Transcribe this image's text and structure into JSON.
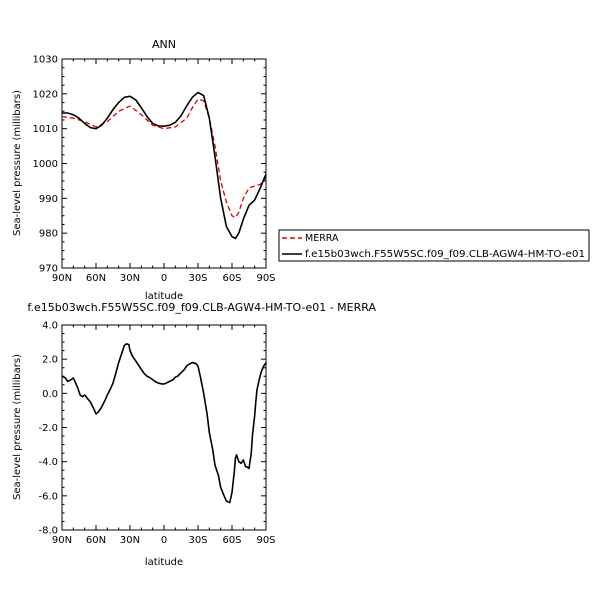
{
  "chart_data": [
    {
      "type": "line",
      "title": "ANN",
      "xlabel": "latitude",
      "ylabel": "Sea-level pressure (millibars)",
      "xlim": [
        90,
        -90
      ],
      "ylim": [
        970,
        1030
      ],
      "x_ticks": [
        "90N",
        "60N",
        "30N",
        "0",
        "30S",
        "60S",
        "90S"
      ],
      "y_ticks": [
        "970",
        "980",
        "990",
        "1000",
        "1010",
        "1020",
        "1030"
      ],
      "legend_position": "right",
      "series": [
        {
          "name": "MERRA",
          "color": "#e00000",
          "dash": true,
          "x": [
            90,
            80,
            70,
            60,
            50,
            40,
            30,
            20,
            10,
            0,
            -10,
            -20,
            -25,
            -30,
            -35,
            -40,
            -45,
            -50,
            -55,
            -60,
            -63,
            -66,
            -70,
            -75,
            -80,
            -85,
            -90
          ],
          "y": [
            1013.5,
            1013,
            1012,
            1010.5,
            1012,
            1015,
            1016.5,
            1014,
            1011,
            1010,
            1010.5,
            1013,
            1016,
            1018.5,
            1018,
            1013,
            1005,
            995,
            989,
            985,
            984.5,
            986,
            990,
            993,
            993.5,
            994,
            996
          ]
        },
        {
          "name": "f.e15b03wch.F55W5SC.f09_f09.CLB-AGW4-HM-TO-e01",
          "color": "#000000",
          "dash": false,
          "x": [
            90,
            85,
            80,
            75,
            70,
            65,
            60,
            55,
            50,
            45,
            40,
            35,
            30,
            25,
            20,
            15,
            10,
            5,
            0,
            -5,
            -10,
            -15,
            -20,
            -25,
            -30,
            -35,
            -40,
            -45,
            -50,
            -55,
            -60,
            -63,
            -66,
            -70,
            -75,
            -80,
            -85,
            -90
          ],
          "y": [
            1014.5,
            1014.5,
            1014,
            1013,
            1011.5,
            1010.3,
            1010,
            1011,
            1013,
            1015.5,
            1017.5,
            1019,
            1019.3,
            1018.3,
            1016,
            1013.5,
            1011.5,
            1010.8,
            1010.7,
            1011,
            1011.8,
            1013.7,
            1016.5,
            1019,
            1020.4,
            1019.5,
            1013,
            1002,
            990,
            982,
            979,
            978.5,
            980,
            984,
            988,
            989.5,
            993,
            997
          ]
        }
      ]
    },
    {
      "type": "line",
      "title": "f.e15b03wch.F55W5SC.f09_f09.CLB-AGW4-HM-TO-e01 - MERRA",
      "xlabel": "latitude",
      "ylabel": "Sea-level pressure (millibars)",
      "xlim": [
        90,
        -90
      ],
      "ylim": [
        -8,
        4
      ],
      "x_ticks": [
        "90N",
        "60N",
        "30N",
        "0",
        "30S",
        "60S",
        "90S"
      ],
      "y_ticks": [
        "-8.0",
        "-6.0",
        "-4.0",
        "-2.0",
        "0.0",
        "2.0",
        "4.0"
      ],
      "series": [
        {
          "name": "",
          "color": "#000000",
          "dash": false,
          "x": [
            90,
            87,
            85,
            82,
            80,
            78,
            76,
            74,
            72,
            70,
            67,
            65,
            62,
            60,
            58,
            55,
            52,
            50,
            47,
            45,
            42,
            40,
            37,
            35,
            33,
            31,
            30,
            28,
            26,
            24,
            22,
            20,
            18,
            15,
            12,
            10,
            8,
            5,
            2,
            0,
            -2,
            -5,
            -8,
            -10,
            -12,
            -15,
            -18,
            -20,
            -22,
            -25,
            -28,
            -30,
            -32,
            -35,
            -38,
            -40,
            -43,
            -45,
            -48,
            -50,
            -53,
            -55,
            -58,
            -60,
            -62,
            -63,
            -64,
            -66,
            -68,
            -70,
            -71,
            -72,
            -73,
            -75,
            -77,
            -78,
            -80,
            -81,
            -82,
            -84,
            -86,
            -88,
            -90
          ],
          "y": [
            1.0,
            0.9,
            0.7,
            0.8,
            0.9,
            0.6,
            0.3,
            -0.1,
            -0.2,
            -0.1,
            -0.35,
            -0.5,
            -0.9,
            -1.2,
            -1.1,
            -0.8,
            -0.4,
            -0.1,
            0.3,
            0.6,
            1.3,
            1.8,
            2.4,
            2.8,
            2.9,
            2.85,
            2.5,
            2.2,
            2.0,
            1.8,
            1.6,
            1.4,
            1.2,
            1.0,
            0.9,
            0.8,
            0.7,
            0.6,
            0.55,
            0.55,
            0.6,
            0.7,
            0.8,
            0.95,
            1.0,
            1.2,
            1.4,
            1.6,
            1.7,
            1.8,
            1.75,
            1.6,
            1.0,
            0.0,
            -1.2,
            -2.3,
            -3.3,
            -4.2,
            -4.8,
            -5.5,
            -6.0,
            -6.3,
            -6.4,
            -5.8,
            -4.6,
            -3.8,
            -3.6,
            -4.0,
            -4.1,
            -3.9,
            -4.1,
            -4.3,
            -4.3,
            -4.4,
            -3.5,
            -2.5,
            -1.3,
            -0.5,
            0.2,
            0.8,
            1.3,
            1.6,
            1.8
          ]
        }
      ]
    }
  ]
}
